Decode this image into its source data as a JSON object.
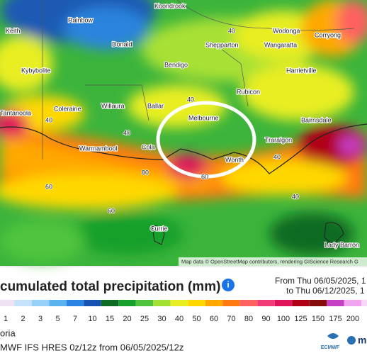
{
  "map": {
    "places": [
      "Koondrook",
      "Rainbow",
      "Keith",
      "Donald",
      "Shepparton",
      "Wodonga",
      "Corryong",
      "Wangaratta",
      "Kybybolite",
      "Bendigo",
      "Harrietville",
      "Coleraine",
      "Willaura",
      "Ballar",
      "Melbourne",
      "Rubicon",
      "Tantanoola",
      "Bairnsdale",
      "Warrnambool",
      "Cola",
      "Traralgon",
      "Wonth",
      "Currie",
      "Lady Barron"
    ],
    "contour_labels": [
      "40",
      "40",
      "40",
      "40",
      "40",
      "60",
      "60",
      "60",
      "80",
      "40"
    ],
    "attribution": "Map data © OpenStreetMap contributors, rendering GIScience Research G"
  },
  "panel": {
    "title": "cumulated total precipitation (mm)",
    "from": "From Thu 06/05/2025, 1",
    "to": "to Thu 06/12/2025, 1",
    "legend": [
      {
        "label": "1",
        "color": "#efe3f3"
      },
      {
        "label": "2",
        "color": "#c4e3fa"
      },
      {
        "label": "3",
        "color": "#96cff8"
      },
      {
        "label": "5",
        "color": "#5cb2ef"
      },
      {
        "label": "7",
        "color": "#2a84e2"
      },
      {
        "label": "10",
        "color": "#1552b2"
      },
      {
        "label": "15",
        "color": "#0e6b24"
      },
      {
        "label": "20",
        "color": "#17a02c"
      },
      {
        "label": "25",
        "color": "#50c43c"
      },
      {
        "label": "30",
        "color": "#a2e032"
      },
      {
        "label": "40",
        "color": "#e8ee22"
      },
      {
        "label": "50",
        "color": "#ffd800"
      },
      {
        "label": "60",
        "color": "#ffa800"
      },
      {
        "label": "70",
        "color": "#ff7a10"
      },
      {
        "label": "80",
        "color": "#ff6060"
      },
      {
        "label": "90",
        "color": "#f23c78"
      },
      {
        "label": "100",
        "color": "#e0145a"
      },
      {
        "label": "125",
        "color": "#b00016"
      },
      {
        "label": "150",
        "color": "#860c0c"
      },
      {
        "label": "175",
        "color": "#c640c6"
      },
      {
        "label": "200",
        "color": "#f0a4f0"
      },
      {
        "label": "2",
        "color": "#f8d8f8"
      }
    ],
    "region": "oria",
    "model": "MWF IFS HRES 0z/12z from 06/05/2025/12z",
    "logo": "ECMWF",
    "logo2": "m"
  }
}
